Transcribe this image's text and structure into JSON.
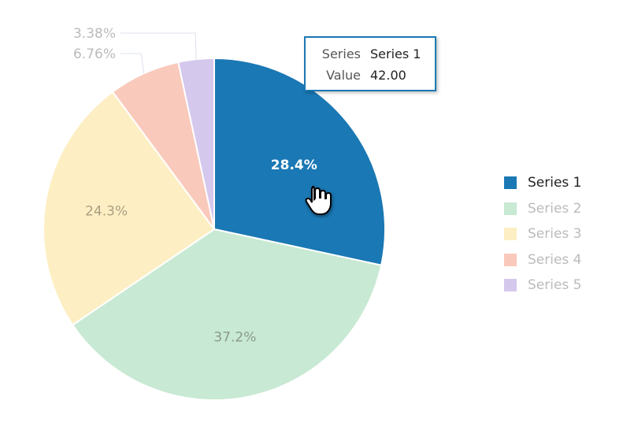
{
  "chart_data": {
    "type": "pie",
    "title": "",
    "start_angle_deg": 0,
    "direction": "clockwise",
    "series": [
      {
        "name": "Series 1",
        "value": 42,
        "label": "28.4%",
        "color": "#1a78b4",
        "active": true
      },
      {
        "name": "Series 2",
        "value": 55,
        "label": "37.2%",
        "color": "#c8e9d3",
        "active": false
      },
      {
        "name": "Series 3",
        "value": 36,
        "label": "24.3%",
        "color": "#fdefc3",
        "active": false
      },
      {
        "name": "Series 4",
        "value": 10,
        "label": "6.76%",
        "color": "#f9c9bb",
        "active": false
      },
      {
        "name": "Series 5",
        "value": 5,
        "label": "3.38%",
        "color": "#d5c8ed",
        "active": false
      }
    ],
    "legend_placement": "right",
    "tooltip": {
      "series_key": "Series",
      "series_value": "Series 1",
      "value_key": "Value",
      "value_value": "42.00"
    }
  }
}
